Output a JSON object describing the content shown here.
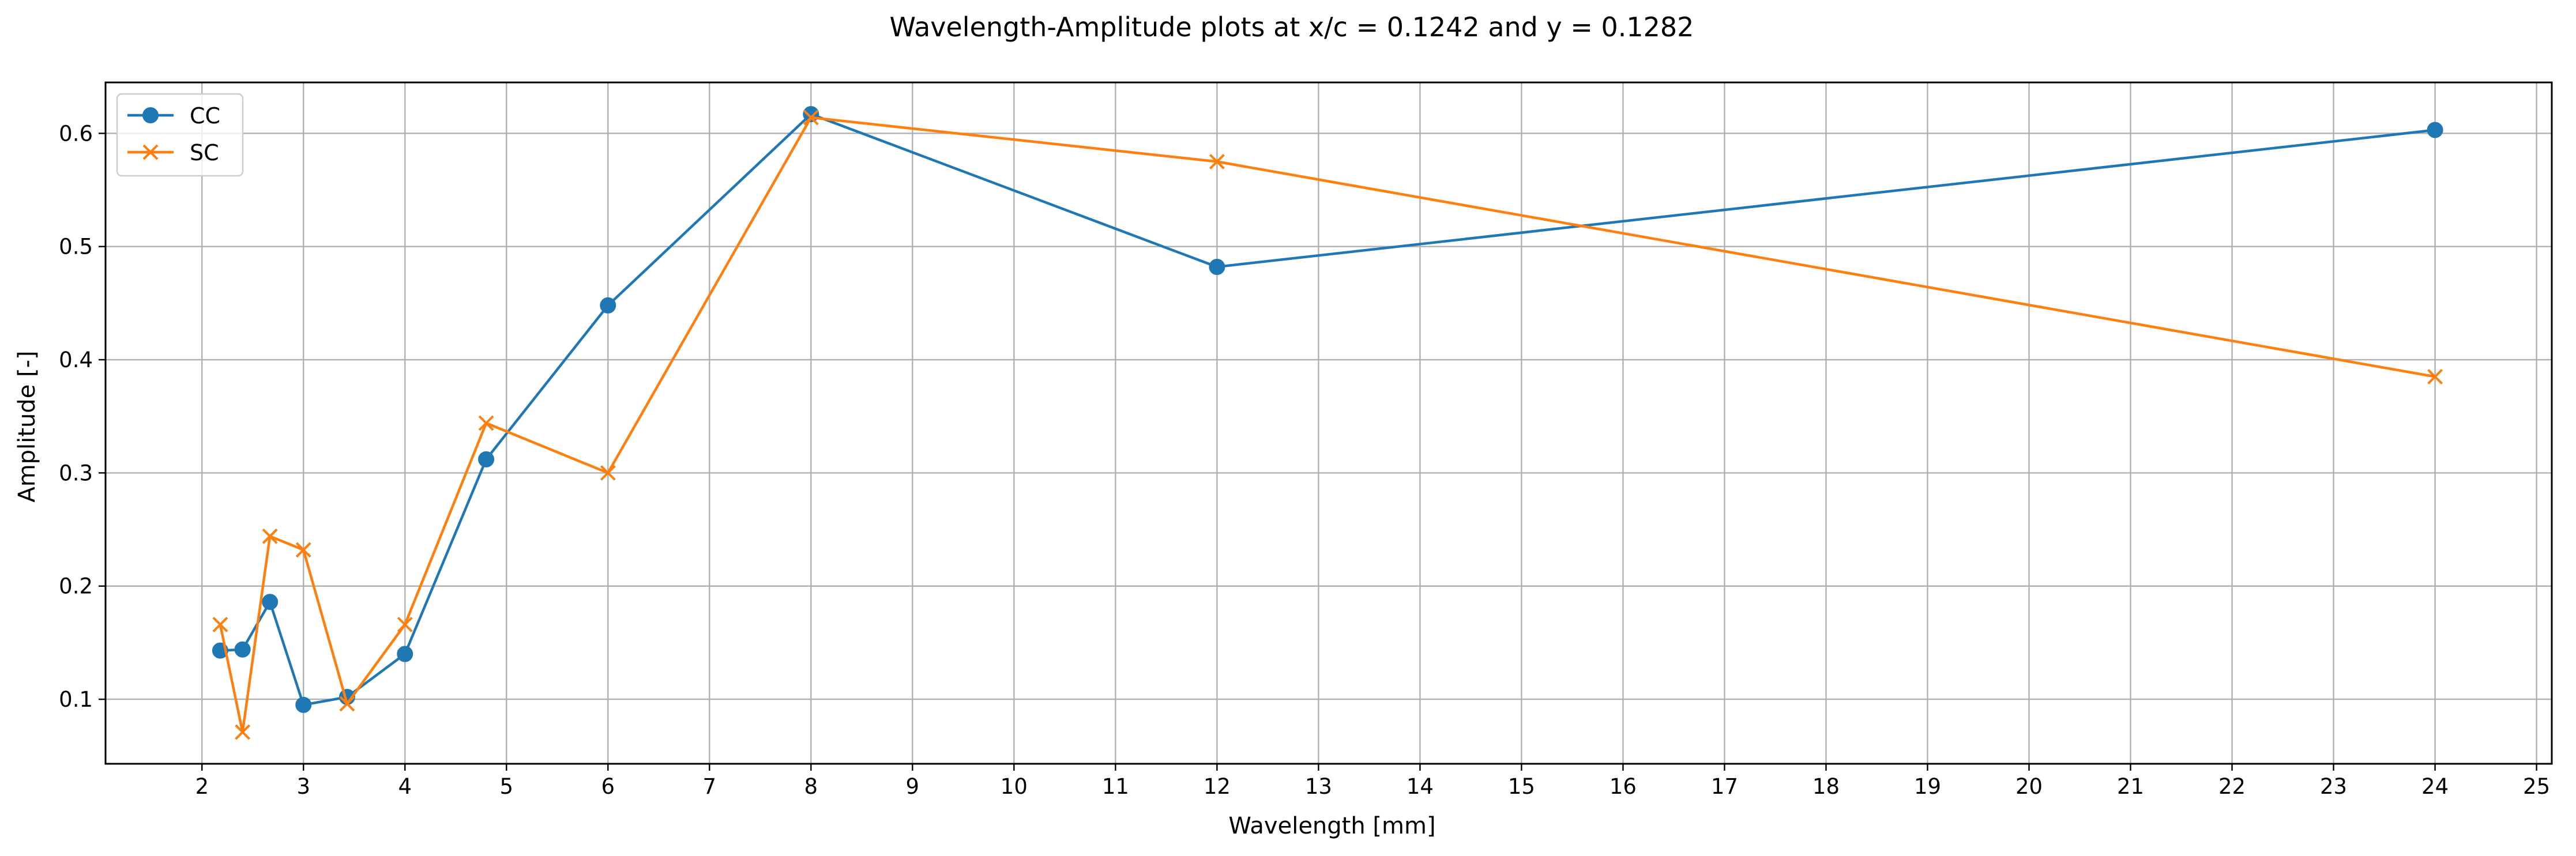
{
  "chart_data": {
    "type": "line",
    "title": "Wavelength-Amplitude plots at x/c = 0.1242 and y = 0.1282",
    "xlabel": "Wavelength [mm]",
    "ylabel": "Amplitude [-]",
    "xlim": [
      1.05,
      25.15
    ],
    "ylim": [
      0.043,
      0.645
    ],
    "xticks": [
      2,
      3,
      4,
      5,
      6,
      7,
      8,
      9,
      10,
      11,
      12,
      13,
      14,
      15,
      16,
      17,
      18,
      19,
      20,
      21,
      22,
      23,
      24,
      25
    ],
    "yticks": [
      0.1,
      0.2,
      0.3,
      0.4,
      0.5,
      0.6
    ],
    "ytick_labels": [
      "0.1",
      "0.2",
      "0.3",
      "0.4",
      "0.5",
      "0.6"
    ],
    "grid": true,
    "legend_position": "top-left",
    "series": [
      {
        "name": "CC",
        "color": "#1f77b4",
        "marker": "circle",
        "x": [
          2.18,
          2.4,
          2.67,
          3.0,
          3.43,
          4.0,
          4.8,
          6.0,
          8.0,
          12.0,
          24.0
        ],
        "y": [
          0.143,
          0.144,
          0.186,
          0.095,
          0.102,
          0.14,
          0.312,
          0.448,
          0.617,
          0.482,
          0.603
        ]
      },
      {
        "name": "SC",
        "color": "#ff7f0e",
        "marker": "x",
        "x": [
          2.18,
          2.4,
          2.67,
          3.0,
          3.43,
          4.0,
          4.8,
          6.0,
          8.0,
          12.0,
          24.0
        ],
        "y": [
          0.166,
          0.071,
          0.244,
          0.232,
          0.096,
          0.166,
          0.344,
          0.3,
          0.614,
          0.575,
          0.385
        ]
      }
    ]
  }
}
